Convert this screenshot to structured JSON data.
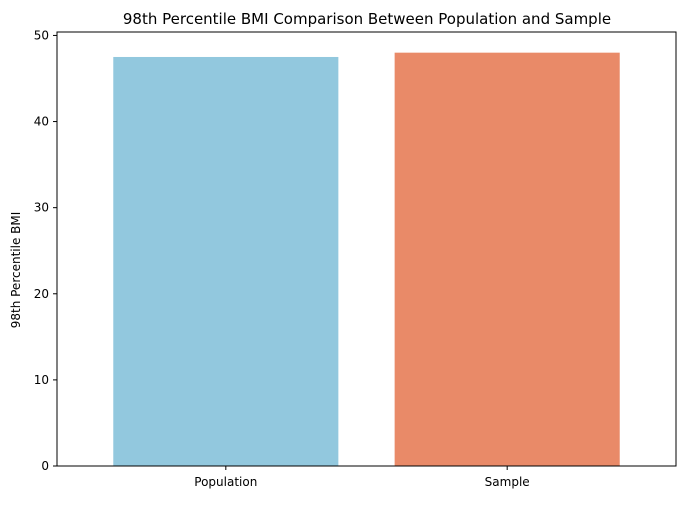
{
  "chart_data": {
    "type": "bar",
    "title": "98th Percentile BMI Comparison Between Population and Sample",
    "xlabel": "",
    "ylabel": "98th Percentile BMI",
    "categories": [
      "Population",
      "Sample"
    ],
    "values": [
      47.5,
      48.0
    ],
    "colors": [
      "#92c8de",
      "#e98a68"
    ],
    "ylim": [
      0,
      50.4
    ],
    "yticks": [
      0,
      10,
      20,
      30,
      40,
      50
    ],
    "grid": false,
    "legend": "none"
  }
}
